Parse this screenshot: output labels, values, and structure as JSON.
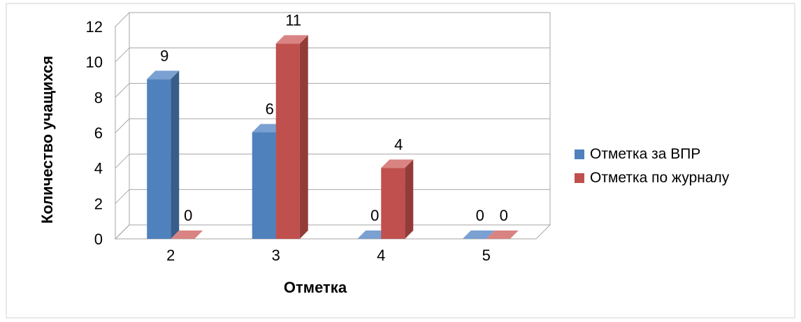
{
  "chart_data": {
    "type": "bar",
    "categories": [
      "2",
      "3",
      "4",
      "5"
    ],
    "series": [
      {
        "name": "Отметка за ВПР",
        "values": [
          9,
          6,
          0,
          0
        ],
        "color": "#4F81BD"
      },
      {
        "name": "Отметка по журналу",
        "values": [
          0,
          11,
          4,
          0
        ],
        "color": "#C0504D"
      }
    ],
    "title": "",
    "xlabel": "Отметка",
    "ylabel": "Количество учащихся",
    "ylim": [
      0,
      12
    ],
    "yticks": [
      "0",
      "2",
      "4",
      "6",
      "8",
      "10",
      "12"
    ],
    "grid": true,
    "legend_position": "right",
    "style": "3d-clustered-column"
  }
}
